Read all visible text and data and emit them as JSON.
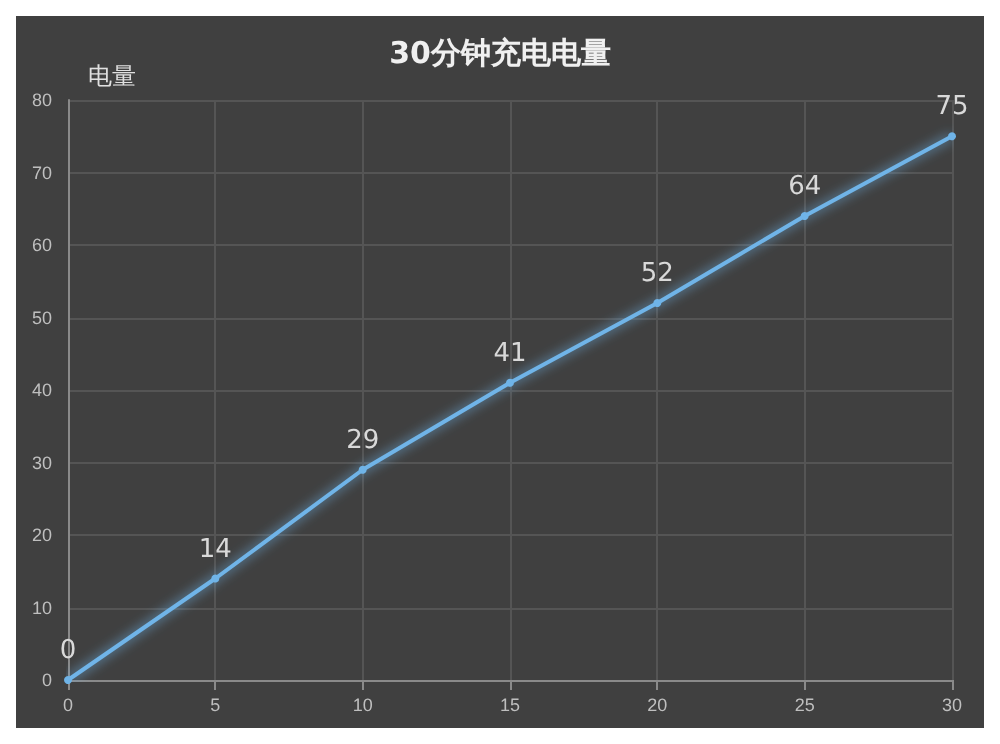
{
  "chart_data": {
    "type": "line",
    "title": "30分钟充电电量",
    "ylabel": "电量",
    "x": [
      0,
      5,
      10,
      15,
      20,
      25,
      30
    ],
    "series": [
      {
        "color": "#6fb4e8",
        "values": [
          0,
          14,
          29,
          41,
          52,
          64,
          75
        ]
      }
    ],
    "xlim": [
      0,
      30
    ],
    "xticks": [
      0,
      5,
      10,
      15,
      20,
      25,
      30
    ],
    "ylim": [
      0,
      80
    ],
    "yticks": [
      0,
      10,
      20,
      30,
      40,
      50,
      60,
      70,
      80
    ],
    "grid": true,
    "data_labels": true,
    "marker": "circle",
    "line_style": "solid"
  }
}
